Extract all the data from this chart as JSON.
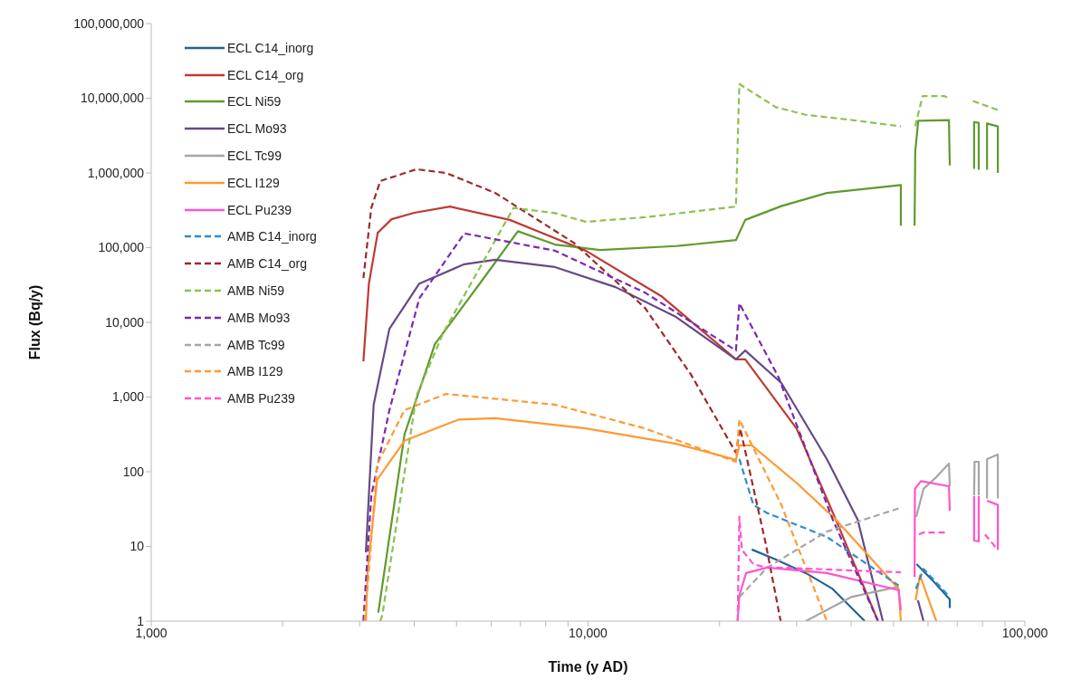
{
  "chart_data": {
    "type": "line",
    "xlabel": "Time (y AD)",
    "ylabel": "Flux (Bq/y)",
    "log": "xy",
    "legend": "top left",
    "xlim": [
      1000,
      100000
    ],
    "xticks": [
      {
        "value": 1000,
        "label": "1,000"
      },
      {
        "value": 2000,
        "label": null
      },
      {
        "value": 3000,
        "label": null
      },
      {
        "value": 4000,
        "label": null
      },
      {
        "value": 5000,
        "label": null
      },
      {
        "value": 6000,
        "label": null
      },
      {
        "value": 7000,
        "label": null
      },
      {
        "value": 8000,
        "label": null
      },
      {
        "value": 9000,
        "label": null
      },
      {
        "value": 10000,
        "label": "10,000"
      },
      {
        "value": 20000,
        "label": null
      },
      {
        "value": 30000,
        "label": null
      },
      {
        "value": 40000,
        "label": null
      },
      {
        "value": 50000,
        "label": null
      },
      {
        "value": 60000,
        "label": null
      },
      {
        "value": 70000,
        "label": null
      },
      {
        "value": 80000,
        "label": null
      },
      {
        "value": 90000,
        "label": null
      },
      {
        "value": 100000,
        "label": "100,000"
      }
    ],
    "ylim": [
      1,
      100000000
    ],
    "yticks": [
      1,
      10,
      100,
      {
        "value": 1000,
        "label": "1,000"
      },
      {
        "value": 10000,
        "label": "10,000"
      },
      {
        "value": 100000,
        "label": "100,000"
      },
      {
        "value": 1000000,
        "label": "1,000,000"
      },
      {
        "value": 10000000,
        "label": "10,000,000"
      },
      {
        "value": 100000000,
        "label": "100,000,000"
      }
    ],
    "series": [
      {
        "name": "ECL C14_inorg",
        "color": "#1f6496",
        "line_style": "solid",
        "x": [
          23700,
          26700,
          31500,
          36300,
          43000,
          50000,
          56500,
          61500,
          67300,
          67300
        ],
        "values": [
          9.1,
          6.8,
          4.4,
          2.7,
          1,
          null,
          5.8,
          3.5,
          1.95,
          1.5
        ]
      },
      {
        "name": "ECL C14_org",
        "color": "#be3a34",
        "line_style": "solid",
        "x": [
          3060,
          3150,
          3300,
          3550,
          4000,
          4830,
          6620,
          9880,
          14700,
          21800,
          22900,
          30000,
          36900,
          46100
        ],
        "values": [
          3000,
          33000,
          158000,
          240000,
          293000,
          355000,
          235000,
          91000,
          22500,
          3200,
          3200,
          380,
          23,
          1
        ]
      },
      {
        "name": "ECL Ni59",
        "color": "#5f9a2e",
        "line_style": "solid",
        "x": [
          3310,
          3800,
          4460,
          5650,
          6910,
          8400,
          10650,
          15900,
          21800,
          22900,
          27700,
          35200,
          52000,
          52000,
          54000,
          55900,
          56100,
          57000,
          67000,
          67300,
          72000,
          76500,
          76500,
          78400,
          78400,
          80000,
          81900,
          81900,
          86700,
          86700
        ],
        "values": [
          1.3,
          315,
          5100,
          33000,
          166000,
          110000,
          93000,
          105000,
          126000,
          235000,
          360000,
          540000,
          690000,
          197000,
          null,
          197000,
          1950000,
          5000000,
          5100000,
          1260000,
          null,
          1130000,
          4800000,
          4700000,
          1100000,
          null,
          1100000,
          4600000,
          4200000,
          1000000
        ]
      },
      {
        "name": "ECL Mo93",
        "color": "#654a86",
        "line_style": "solid",
        "x": [
          3100,
          3230,
          3510,
          4110,
          5210,
          6130,
          8400,
          11560,
          15900,
          21800,
          22900,
          27700,
          35200,
          41400,
          47300,
          52000,
          56900,
          58600
        ],
        "values": [
          8.3,
          790,
          8200,
          33000,
          60000,
          69000,
          55000,
          29600,
          11800,
          3200,
          4200,
          1540,
          148,
          23,
          1,
          null,
          1.9,
          1
        ]
      },
      {
        "name": "ECL Tc99",
        "color": "#a6a6a6",
        "line_style": "solid",
        "x": [
          31500,
          40000,
          51400,
          54000,
          56400,
          58600,
          62700,
          67000,
          67300,
          72000,
          76500,
          76700,
          78400,
          78400,
          80000,
          81900,
          81900,
          86700,
          86700
        ],
        "values": [
          1,
          2.1,
          2.9,
          null,
          25,
          59,
          85,
          129,
          64,
          null,
          48,
          136,
          136,
          48,
          null,
          44,
          148,
          170,
          44
        ]
      },
      {
        "name": "ECL I129",
        "color": "#ff9933",
        "line_style": "solid",
        "x": [
          3100,
          3130,
          3290,
          3800,
          5060,
          6130,
          9880,
          15900,
          21800,
          22200,
          23700,
          30000,
          36900,
          51400,
          52000,
          54000,
          56200,
          57500,
          62700
        ],
        "values": [
          1,
          4.8,
          78,
          260,
          500,
          520,
          380,
          237,
          144,
          225,
          225,
          71,
          23,
          2.7,
          1,
          null,
          1.9,
          4.1,
          1
        ]
      },
      {
        "name": "ECL Pu239",
        "color": "#ff55cc",
        "line_style": "solid",
        "x": [
          22000,
          22200,
          23000,
          25700,
          35200,
          51400,
          52000,
          54000,
          55900,
          56000,
          57800,
          67000,
          67300,
          72000,
          76500,
          76500,
          78400,
          78400,
          80000,
          81900,
          86700,
          86700
        ],
        "values": [
          1,
          2.2,
          4.4,
          5.2,
          4.4,
          2.6,
          1.4,
          null,
          3.9,
          59,
          75,
          64,
          30,
          null,
          47,
          12,
          11.7,
          47,
          null,
          41,
          36,
          9
        ]
      },
      {
        "name": "AMB C14_inorg",
        "color": "#2e8bd0",
        "line_style": "dashed",
        "x": [
          22200,
          23900,
          25700,
          35200,
          51400,
          54000,
          56300,
          58600,
          67300
        ],
        "values": [
          148,
          36,
          28,
          13.4,
          3,
          null,
          2.7,
          5,
          2.1
        ]
      },
      {
        "name": "AMB C14_org",
        "color": "#9c2a2a",
        "line_style": "dashed",
        "x": [
          3060,
          3190,
          3345,
          4050,
          4730,
          6130,
          9260,
          13500,
          17200,
          21800,
          22300,
          25500,
          27600
        ],
        "values": [
          39000,
          340000,
          780000,
          1120000,
          1000000,
          540000,
          117000,
          15600,
          2000,
          180,
          380,
          11,
          1
        ]
      },
      {
        "name": "AMB Ni59",
        "color": "#8cc152",
        "line_style": "dashed",
        "x": [
          3345,
          3380,
          4050,
          4670,
          6750,
          8400,
          9880,
          13500,
          21800,
          22200,
          26900,
          31500,
          41400,
          52000,
          54000,
          56100,
          58300,
          65300,
          67300,
          72000,
          76000,
          87000
        ],
        "values": [
          1,
          1.2,
          1050,
          7400,
          340000,
          290000,
          222000,
          255000,
          355000,
          15500000,
          7600000,
          6000000,
          5000000,
          4200000,
          null,
          4200000,
          10700000,
          10700000,
          10000000,
          null,
          9200000,
          6900000
        ]
      },
      {
        "name": "AMB Mo93",
        "color": "#7a2ab0",
        "line_style": "dashed",
        "x": [
          3060,
          3190,
          3510,
          4110,
          5210,
          8400,
          13500,
          21800,
          22200,
          27300,
          36300,
          46100
        ],
        "values": [
          1,
          48,
          670,
          21000,
          155000,
          91000,
          25000,
          4200,
          18000,
          1830,
          23,
          1
        ]
      },
      {
        "name": "AMB Tc99",
        "color": "#a6a6a6",
        "line_style": "dashed",
        "x": [
          22200,
          25700,
          35200,
          52000
        ],
        "values": [
          2.1,
          5.2,
          15.8,
          33
        ]
      },
      {
        "name": "AMB I129",
        "color": "#ff9933",
        "line_style": "dashed",
        "x": [
          3080,
          3130,
          3290,
          3800,
          4730,
          8400,
          13500,
          21800,
          22200,
          27700,
          35200
        ],
        "values": [
          1,
          3,
          125,
          670,
          1100,
          790,
          380,
          136,
          500,
          36,
          1
        ]
      },
      {
        "name": "AMB Pu239",
        "color": "#ff55cc",
        "line_style": "dashed",
        "x": [
          22000,
          22200,
          22500,
          23900,
          25300,
          52000,
          54000,
          57200,
          58600,
          66000,
          72000,
          81000,
          86700
        ],
        "values": [
          1,
          25,
          9,
          5.8,
          5.3,
          4.5,
          null,
          14.5,
          15.4,
          15.4,
          null,
          14.5,
          9
        ]
      }
    ]
  }
}
